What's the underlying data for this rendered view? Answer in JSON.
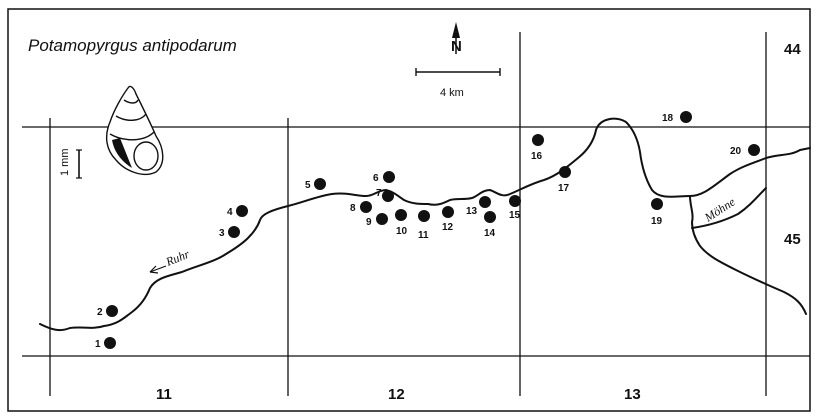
{
  "title": "Potamopyrgus antipodarum",
  "north_label": "N",
  "scale_label": "4 km",
  "snail_scale_label": "1 mm",
  "rivers": [
    {
      "name": "Ruhr",
      "arrow": "←"
    },
    {
      "name": "Möhne"
    }
  ],
  "grid_labels_bottom": [
    "11",
    "12",
    "13"
  ],
  "grid_labels_right": [
    "44",
    "45"
  ],
  "sites": [
    {
      "id": "1"
    },
    {
      "id": "2"
    },
    {
      "id": "3"
    },
    {
      "id": "4"
    },
    {
      "id": "5"
    },
    {
      "id": "6"
    },
    {
      "id": "7"
    },
    {
      "id": "8"
    },
    {
      "id": "9"
    },
    {
      "id": "10"
    },
    {
      "id": "11"
    },
    {
      "id": "12"
    },
    {
      "id": "13"
    },
    {
      "id": "14"
    },
    {
      "id": "15"
    },
    {
      "id": "16"
    },
    {
      "id": "17"
    },
    {
      "id": "18"
    },
    {
      "id": "19"
    },
    {
      "id": "20"
    }
  ],
  "colors": {
    "ink": "#111111",
    "background": "#ffffff"
  }
}
